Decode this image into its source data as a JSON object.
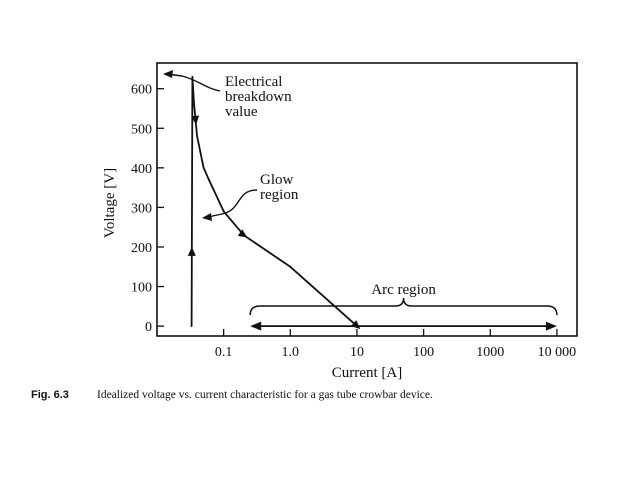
{
  "chart_data": {
    "type": "line",
    "title": "",
    "xlabel": "Current [A]",
    "ylabel": "Voltage [V]",
    "xscale": "log",
    "xlim": [
      0.01,
      20000
    ],
    "ylim": [
      -25,
      665
    ],
    "x_ticks": [
      0.1,
      1,
      10,
      100,
      1000,
      10000
    ],
    "x_tick_labels": [
      "0.1",
      "1.0",
      "10",
      "100",
      "1000",
      "10 000"
    ],
    "y_ticks": [
      0,
      100,
      200,
      300,
      400,
      500,
      600
    ],
    "y_tick_labels": [
      "0",
      "100",
      "200",
      "300",
      "400",
      "500",
      "600"
    ],
    "grid": false,
    "series": [
      {
        "points": [
          {
            "x": 0.033,
            "y": 0
          },
          {
            "x": 0.034,
            "y": 630
          },
          {
            "x": 0.036,
            "y": 560
          },
          {
            "x": 0.04,
            "y": 480
          },
          {
            "x": 0.05,
            "y": 400
          },
          {
            "x": 0.06,
            "y": 370
          },
          {
            "x": 0.1,
            "y": 290
          },
          {
            "x": 0.2,
            "y": 230
          },
          {
            "x": 1,
            "y": 150
          },
          {
            "x": 10,
            "y": 0
          }
        ]
      }
    ],
    "arc_region": {
      "x_from": 0.25,
      "x_to": 10000,
      "y": 0
    },
    "annotations": [
      {
        "lines": [
          "Electrical",
          "breakdown",
          "value"
        ],
        "x": 0.034,
        "y": 630
      },
      {
        "lines": [
          "Glow",
          "region"
        ],
        "x": 0.1,
        "y": 270
      },
      {
        "lines": [
          "Arc region"
        ],
        "x": 50,
        "y": 45
      }
    ]
  },
  "caption": {
    "label": "Fig. 6.3",
    "text": "Idealized voltage vs. current characteristic for a gas tube crowbar device."
  }
}
